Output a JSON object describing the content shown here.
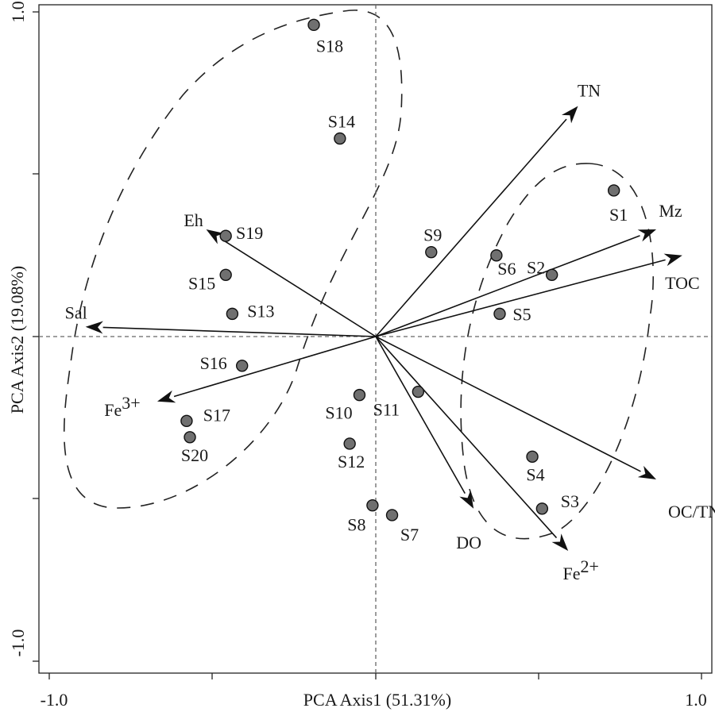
{
  "chart_data": {
    "type": "scatter",
    "subtype": "pca-biplot",
    "xlabel": "PCA Axis1 (51.31%)",
    "ylabel": "PCA Axis2 (19.08%)",
    "xlim": [
      -1.0,
      1.0
    ],
    "ylim": [
      -1.0,
      1.0
    ],
    "x_tick_labels": [
      "-1.0",
      "1.0"
    ],
    "y_tick_labels": [
      "1.0",
      "-1.0"
    ],
    "grid": false,
    "zero_lines": "dashed",
    "point_color": "#707070",
    "points": [
      {
        "label": "S1",
        "x": 0.73,
        "y": 0.45
      },
      {
        "label": "S2",
        "x": 0.54,
        "y": 0.19
      },
      {
        "label": "S3",
        "x": 0.51,
        "y": -0.53
      },
      {
        "label": "S4",
        "x": 0.48,
        "y": -0.37
      },
      {
        "label": "S5",
        "x": 0.38,
        "y": 0.07
      },
      {
        "label": "S6",
        "x": 0.37,
        "y": 0.25
      },
      {
        "label": "S7",
        "x": 0.05,
        "y": -0.55
      },
      {
        "label": "S8",
        "x": -0.01,
        "y": -0.52
      },
      {
        "label": "S9",
        "x": 0.17,
        "y": 0.26
      },
      {
        "label": "S10",
        "x": -0.05,
        "y": -0.18
      },
      {
        "label": "S11",
        "x": 0.13,
        "y": -0.17
      },
      {
        "label": "S12",
        "x": -0.08,
        "y": -0.33
      },
      {
        "label": "S13",
        "x": -0.44,
        "y": 0.07
      },
      {
        "label": "S14",
        "x": -0.11,
        "y": 0.61
      },
      {
        "label": "S15",
        "x": -0.46,
        "y": 0.19
      },
      {
        "label": "S16",
        "x": -0.41,
        "y": -0.09
      },
      {
        "label": "S17",
        "x": -0.58,
        "y": -0.26
      },
      {
        "label": "S18",
        "x": -0.19,
        "y": 0.96
      },
      {
        "label": "S19",
        "x": -0.46,
        "y": 0.31
      },
      {
        "label": "S20",
        "x": -0.57,
        "y": -0.31
      }
    ],
    "vectors": [
      {
        "label": "TN",
        "x": 0.62,
        "y": 0.71
      },
      {
        "label": "Mz",
        "x": 0.86,
        "y": 0.33
      },
      {
        "label": "TOC",
        "x": 0.94,
        "y": 0.25
      },
      {
        "label": "OC/TN",
        "x": 0.86,
        "y": -0.44
      },
      {
        "label": "Fe2+",
        "x": 0.59,
        "y": -0.66
      },
      {
        "label": "DO",
        "x": 0.3,
        "y": -0.53
      },
      {
        "label": "Eh",
        "x": -0.52,
        "y": 0.33
      },
      {
        "label": "Sal",
        "x": -0.89,
        "y": 0.03
      },
      {
        "label": "Fe3+",
        "x": -0.67,
        "y": -0.2
      }
    ],
    "groups": [
      "ellipse-left-cluster",
      "ellipse-right-cluster"
    ]
  }
}
